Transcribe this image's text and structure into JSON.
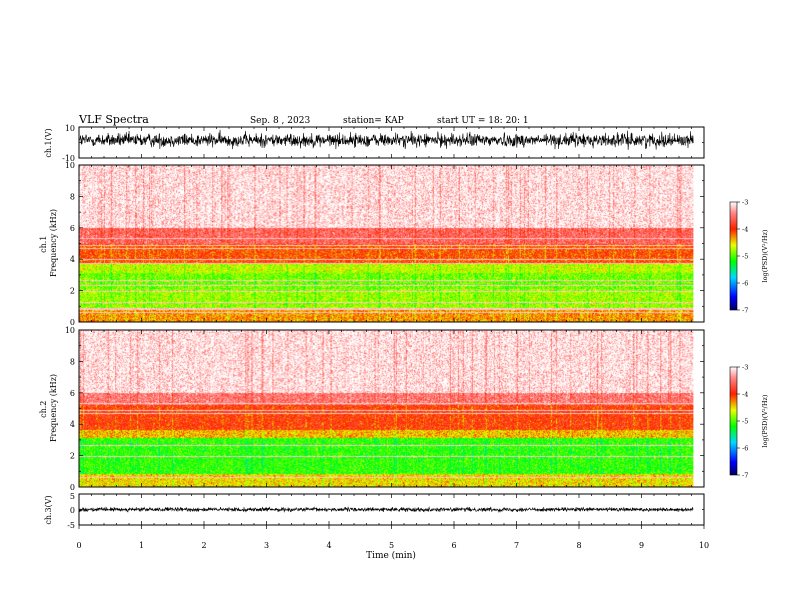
{
  "header": {
    "title": "VLF Spectra",
    "date": "Sep. 8 , 2023",
    "station": "station= KAP",
    "start_time": "start  UT =   18: 20: 1"
  },
  "chart_data": [
    {
      "id": "ch1-waveform",
      "type": "line",
      "ylabel": "ch.1(V)",
      "ylim": [
        -10,
        10
      ],
      "ytick_labels": [
        "10",
        "-10"
      ],
      "xlim": [
        0,
        10
      ],
      "data_extent_x": [
        0,
        9.83
      ],
      "signal": {
        "mean": 1.5,
        "range": [
          -7,
          9
        ]
      }
    },
    {
      "id": "ch1-spectrogram",
      "type": "heatmap",
      "ylabel": "ch.1\nFrequency  (kHz)",
      "ylim": [
        0,
        10
      ],
      "ytick_labels": [
        "0",
        "2",
        "4",
        "6",
        "8",
        "10"
      ],
      "xlim": [
        0,
        10
      ],
      "data_extent_x": [
        0,
        9.83
      ],
      "colorbar": {
        "label": "log(PSD)(V²/Hz)",
        "range": [
          -7,
          -3
        ],
        "tick_labels": [
          "-3",
          "-4",
          "-5",
          "-6",
          "-7"
        ]
      },
      "bands_khz": [
        {
          "from": 0.0,
          "to": 0.8,
          "log_psd": -4.3
        },
        {
          "from": 0.8,
          "to": 2.1,
          "log_psd": -4.8
        },
        {
          "from": 2.1,
          "to": 3.1,
          "log_psd": -4.9
        },
        {
          "from": 3.1,
          "to": 3.7,
          "log_psd": -4.7
        },
        {
          "from": 3.7,
          "to": 5.0,
          "log_psd": -4.1
        },
        {
          "from": 5.0,
          "to": 6.0,
          "log_psd": -3.6
        },
        {
          "from": 6.0,
          "to": 10.0,
          "log_psd": -3.1
        }
      ],
      "tone_lines_khz": [
        0.6,
        0.8,
        1.2,
        1.9,
        2.3,
        2.6,
        3.7,
        4.0,
        4.7,
        4.9,
        5.3
      ]
    },
    {
      "id": "ch2-spectrogram",
      "type": "heatmap",
      "ylabel": "ch.2\nFrequency  (kHz)",
      "ylim": [
        0,
        10
      ],
      "ytick_labels": [
        "0",
        "2",
        "4",
        "6",
        "8",
        "10"
      ],
      "xlim": [
        0,
        10
      ],
      "data_extent_x": [
        0,
        9.83
      ],
      "colorbar": {
        "label": "log(PSD)(V²/Hz)",
        "range": [
          -7,
          -3
        ],
        "tick_labels": [
          "-3",
          "-4",
          "-5",
          "-6",
          "-7"
        ]
      },
      "bands_khz": [
        {
          "from": 0.0,
          "to": 0.8,
          "log_psd": -4.5
        },
        {
          "from": 0.8,
          "to": 3.1,
          "log_psd": -5.1
        },
        {
          "from": 3.1,
          "to": 3.6,
          "log_psd": -4.4
        },
        {
          "from": 3.6,
          "to": 5.2,
          "log_psd": -4.0
        },
        {
          "from": 5.2,
          "to": 6.0,
          "log_psd": -3.5
        },
        {
          "from": 6.0,
          "to": 10.0,
          "log_psd": -3.1
        }
      ],
      "tone_lines_khz": [
        0.6,
        1.9,
        2.6,
        4.7,
        4.9,
        5.3
      ]
    },
    {
      "id": "ch3-waveform",
      "type": "line",
      "ylabel": "ch.3(V)",
      "ylim": [
        -5,
        5
      ],
      "ytick_labels": [
        "5",
        "0",
        "-5"
      ],
      "xlim": [
        0,
        10
      ],
      "data_extent_x": [
        0,
        9.83
      ],
      "signal": {
        "mean": 0.0,
        "range": [
          -0.8,
          0.8
        ]
      }
    }
  ],
  "xaxis": {
    "label": "Time  (min)",
    "tick_labels": [
      "0",
      "1",
      "2",
      "3",
      "4",
      "5",
      "6",
      "7",
      "8",
      "9",
      "10"
    ]
  },
  "colors": {
    "colormap": [
      "#000080",
      "#0000ff",
      "#00e0ff",
      "#00ff00",
      "#e0ff00",
      "#ff3000",
      "#ff9090",
      "#ffffff"
    ]
  }
}
